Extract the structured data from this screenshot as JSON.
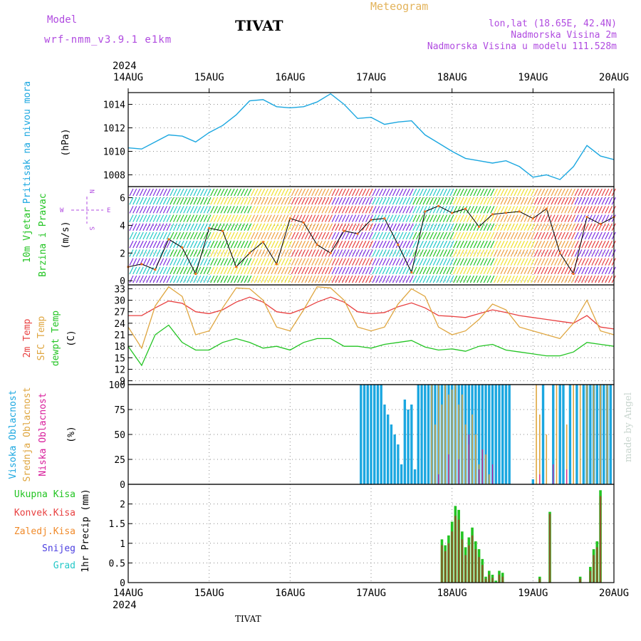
{
  "header": {
    "model_label": "Model",
    "model_name": "wrf-nmm_v3.9.1 e1km",
    "station": "TIVAT",
    "meteogram": "Meteogram",
    "lonlat": "lon,lat (18.65E, 42.4N)",
    "elevation": "Nadmorska Visina 2m",
    "model_elevation": "Nadmorska Visina u modelu 111.528m"
  },
  "footer": {
    "station": "TIVAT",
    "credit": "made by Angel"
  },
  "colors": {
    "pressure": "#1ba7e0",
    "wind_label": "#22c422",
    "temp2m": "#e84040",
    "sfc": "#dfa640",
    "dew": "#22c422",
    "high_cloud": "#1ba7e0",
    "mid_cloud": "#dfa640",
    "low_cloud": "#d81b9a",
    "total_precip": "#22c422",
    "conv_precip": "#e84040",
    "frozen_precip": "#f08a2a",
    "snow": "#4b3ee0",
    "hail": "#22c8c8"
  },
  "time_axis": {
    "year": "2024",
    "labels": [
      "14AUG",
      "15AUG",
      "16AUG",
      "17AUG",
      "18AUG",
      "19AUG",
      "20AUG"
    ]
  },
  "panels": {
    "pressure": {
      "label": "Pritisak na nivou mora",
      "unit": "(hPa)",
      "ticks": [
        "1008",
        "1010",
        "1012",
        "1014"
      ]
    },
    "wind": {
      "label1": "10m Vjetar",
      "label2": "Brzina i Pravac",
      "unit": "(m/s)",
      "ticks": [
        "0",
        "2",
        "4",
        "6"
      ],
      "compass": {
        "w": "W",
        "e": "E",
        "n": "N",
        "s": "S"
      }
    },
    "temperature": {
      "label_2m": "2m Temp",
      "label_sfc": "SFC Temp",
      "label_dew": "dewpt Temp",
      "unit": "(C)",
      "ticks": [
        "9",
        "12",
        "15",
        "18",
        "21",
        "24",
        "27",
        "30",
        "33"
      ]
    },
    "clouds": {
      "label_high": "Visoka Oblacnost",
      "label_mid": "Srednja Oblacnost",
      "label_low": "Niska Oblacnost",
      "unit": "(%)",
      "ticks": [
        "0",
        "25",
        "50",
        "75",
        "100"
      ]
    },
    "precip": {
      "label_total": "Ukupna Kisa",
      "label_conv": "Konvek.Kisa",
      "label_frozen": "Zaledj.Kisa",
      "label_snow": "Snijeg",
      "label_hail": "Grad",
      "axis_label": "1hr Precip (mm)",
      "ticks": [
        "0",
        "0.5",
        "1",
        "1.5",
        "2"
      ]
    }
  },
  "chart_data": [
    {
      "type": "line",
      "panel": "pressure",
      "ylim": [
        1007,
        1015
      ],
      "x_hours": [
        0,
        4,
        8,
        12,
        16,
        20,
        24,
        28,
        32,
        36,
        40,
        44,
        48,
        52,
        56,
        60,
        64,
        68,
        72,
        76,
        80,
        84,
        88,
        92,
        96,
        100,
        104,
        108,
        112,
        116,
        120,
        124,
        128,
        132,
        136,
        140,
        144
      ],
      "series": [
        {
          "name": "Pritisak na nivou mora",
          "values": [
            1010.3,
            1010.2,
            1010.8,
            1011.4,
            1011.3,
            1010.8,
            1011.6,
            1012.2,
            1013.1,
            1014.3,
            1014.4,
            1013.8,
            1013.7,
            1013.8,
            1014.2,
            1014.9,
            1014.0,
            1012.8,
            1012.9,
            1012.3,
            1012.5,
            1012.6,
            1011.4,
            1010.7,
            1010.0,
            1009.4,
            1009.2,
            1009.0,
            1009.2,
            1008.7,
            1007.8,
            1008.0,
            1007.6,
            1008.7,
            1010.5,
            1009.6,
            1009.3
          ]
        }
      ]
    },
    {
      "type": "line",
      "panel": "wind",
      "ylim": [
        -0.3,
        6.8
      ],
      "x_hours": [
        0,
        4,
        8,
        12,
        16,
        20,
        24,
        28,
        32,
        36,
        40,
        44,
        48,
        52,
        56,
        60,
        64,
        68,
        72,
        76,
        80,
        84,
        88,
        92,
        96,
        100,
        104,
        108,
        112,
        116,
        120,
        124,
        128,
        132,
        136,
        140,
        144
      ],
      "series": [
        {
          "name": "10m Vjetar",
          "values": [
            1.0,
            1.2,
            0.8,
            3.0,
            2.4,
            0.5,
            3.8,
            3.6,
            1.0,
            2.0,
            2.8,
            1.2,
            4.5,
            4.2,
            2.6,
            2.0,
            3.6,
            3.4,
            4.4,
            4.5,
            2.6,
            0.6,
            5.0,
            5.4,
            4.9,
            5.2,
            3.9,
            4.8,
            4.9,
            5.0,
            4.5,
            5.2,
            2.0,
            0.5,
            4.6,
            4.1,
            4.6
          ]
        }
      ]
    },
    {
      "type": "line",
      "panel": "temperature",
      "ylim": [
        8,
        34
      ],
      "x_hours": [
        0,
        4,
        8,
        12,
        16,
        20,
        24,
        28,
        32,
        36,
        40,
        44,
        48,
        52,
        56,
        60,
        64,
        68,
        72,
        76,
        80,
        84,
        88,
        92,
        96,
        100,
        104,
        108,
        112,
        116,
        120,
        124,
        128,
        132,
        136,
        140,
        144
      ],
      "series": [
        {
          "name": "2m Temp",
          "values": [
            26,
            26,
            28,
            29.8,
            29.2,
            27,
            26.5,
            27.5,
            29.5,
            30.8,
            29.5,
            27,
            26.5,
            27.8,
            29.5,
            30.8,
            29.5,
            27,
            26.5,
            26.8,
            28.3,
            29.3,
            28,
            26,
            25.8,
            25.5,
            26.5,
            27.5,
            26.8,
            26,
            25.5,
            25,
            24.5,
            24,
            26,
            23,
            22.5
          ]
        },
        {
          "name": "SFC Temp",
          "values": [
            23,
            17.5,
            28.5,
            33.5,
            31,
            21,
            22,
            28,
            33.2,
            33,
            30,
            23,
            22,
            27.5,
            33.5,
            33.2,
            30,
            23,
            22,
            23,
            29,
            33,
            31,
            23,
            21,
            22,
            25,
            29,
            27.5,
            23,
            22,
            21,
            20,
            24,
            30,
            22,
            21
          ]
        },
        {
          "name": "dewpt Temp",
          "values": [
            18,
            13,
            21,
            23.5,
            19,
            17,
            17,
            19,
            20,
            19,
            17.5,
            18,
            17,
            19,
            20,
            20,
            18,
            18,
            17.5,
            18.5,
            19,
            19.5,
            17.8,
            17,
            17.3,
            16.7,
            18,
            18.5,
            17,
            16.5,
            16,
            15.5,
            15.5,
            16.5,
            19,
            18.5,
            18
          ]
        }
      ]
    },
    {
      "type": "bar",
      "panel": "clouds",
      "ylim": [
        0,
        100
      ],
      "series": [
        {
          "name": "Visoka Oblacnost",
          "points": [
            [
              69,
              100
            ],
            [
              70,
              100
            ],
            [
              71,
              100
            ],
            [
              72,
              100
            ],
            [
              73,
              100
            ],
            [
              74,
              100
            ],
            [
              75,
              100
            ],
            [
              76,
              80
            ],
            [
              77,
              70
            ],
            [
              78,
              60
            ],
            [
              79,
              50
            ],
            [
              80,
              40
            ],
            [
              81,
              20
            ],
            [
              82,
              85
            ],
            [
              83,
              75
            ],
            [
              84,
              80
            ],
            [
              85,
              15
            ],
            [
              86,
              100
            ],
            [
              87,
              100
            ],
            [
              88,
              100
            ],
            [
              89,
              100
            ],
            [
              90,
              100
            ],
            [
              91,
              100
            ],
            [
              92,
              100
            ],
            [
              93,
              100
            ],
            [
              94,
              100
            ],
            [
              95,
              100
            ],
            [
              96,
              100
            ],
            [
              97,
              100
            ],
            [
              98,
              100
            ],
            [
              99,
              100
            ],
            [
              100,
              100
            ],
            [
              101,
              100
            ],
            [
              102,
              100
            ],
            [
              103,
              100
            ],
            [
              104,
              100
            ],
            [
              105,
              100
            ],
            [
              106,
              100
            ],
            [
              107,
              100
            ],
            [
              108,
              100
            ],
            [
              109,
              100
            ],
            [
              110,
              100
            ],
            [
              111,
              100
            ],
            [
              112,
              100
            ],
            [
              113,
              100
            ],
            [
              120,
              5
            ],
            [
              123,
              100
            ],
            [
              126,
              100
            ],
            [
              128,
              100
            ],
            [
              129,
              100
            ],
            [
              131,
              100
            ],
            [
              133,
              100
            ],
            [
              135,
              100
            ],
            [
              136,
              100
            ],
            [
              137,
              100
            ],
            [
              138,
              100
            ],
            [
              139,
              100
            ],
            [
              140,
              100
            ],
            [
              141,
              100
            ],
            [
              142,
              100
            ],
            [
              143,
              100
            ]
          ]
        },
        {
          "name": "Srednja Oblacnost",
          "points": [
            [
              90,
              100
            ],
            [
              91,
              60
            ],
            [
              92,
              100
            ],
            [
              93,
              80
            ],
            [
              94,
              100
            ],
            [
              95,
              90
            ],
            [
              96,
              95
            ],
            [
              97,
              100
            ],
            [
              98,
              80
            ],
            [
              99,
              90
            ],
            [
              100,
              60
            ],
            [
              101,
              40
            ],
            [
              102,
              70
            ],
            [
              103,
              50
            ],
            [
              104,
              20
            ],
            [
              105,
              35
            ],
            [
              106,
              30
            ],
            [
              107,
              10
            ],
            [
              121,
              100
            ],
            [
              122,
              70
            ],
            [
              124,
              50
            ],
            [
              127,
              100
            ],
            [
              130,
              60
            ],
            [
              132,
              100
            ],
            [
              134,
              100
            ],
            [
              136,
              100
            ],
            [
              138,
              100
            ],
            [
              140,
              100
            ],
            [
              142,
              100
            ]
          ]
        },
        {
          "name": "Niska Oblacnost",
          "points": [
            [
              92,
              10
            ],
            [
              95,
              30
            ],
            [
              98,
              25
            ],
            [
              101,
              50
            ],
            [
              104,
              15
            ],
            [
              105,
              35
            ],
            [
              108,
              20
            ],
            [
              122,
              10
            ],
            [
              126,
              20
            ],
            [
              130,
              15
            ]
          ]
        }
      ]
    },
    {
      "type": "bar",
      "panel": "precip",
      "ylim": [
        0,
        2.5
      ],
      "series": [
        {
          "name": "Ukupna Kisa",
          "points": [
            [
              93,
              1.1
            ],
            [
              94,
              0.95
            ],
            [
              95,
              1.2
            ],
            [
              96,
              1.55
            ],
            [
              97,
              1.95
            ],
            [
              98,
              1.85
            ],
            [
              99,
              1.3
            ],
            [
              100,
              0.9
            ],
            [
              101,
              1.15
            ],
            [
              102,
              1.4
            ],
            [
              103,
              1.05
            ],
            [
              104,
              0.85
            ],
            [
              105,
              0.6
            ],
            [
              106,
              0.15
            ],
            [
              107,
              0.3
            ],
            [
              108,
              0.2
            ],
            [
              109,
              0.05
            ],
            [
              110,
              0.3
            ],
            [
              111,
              0.25
            ],
            [
              122,
              0.15
            ],
            [
              125,
              1.8
            ],
            [
              134,
              0.15
            ],
            [
              137,
              0.4
            ],
            [
              138,
              0.85
            ],
            [
              139,
              1.05
            ],
            [
              140,
              2.35
            ]
          ]
        },
        {
          "name": "Konvek.Kisa",
          "points": [
            [
              93,
              0.95
            ],
            [
              94,
              0.8
            ],
            [
              95,
              1.0
            ],
            [
              96,
              1.3
            ],
            [
              97,
              1.7
            ],
            [
              98,
              1.6
            ],
            [
              99,
              1.1
            ],
            [
              100,
              0.7
            ],
            [
              101,
              0.95
            ],
            [
              102,
              1.2
            ],
            [
              103,
              0.85
            ],
            [
              104,
              0.65
            ],
            [
              105,
              0.45
            ],
            [
              106,
              0.1
            ],
            [
              107,
              0.2
            ],
            [
              108,
              0.12
            ],
            [
              110,
              0.2
            ],
            [
              111,
              0.15
            ],
            [
              122,
              0.1
            ],
            [
              125,
              1.75
            ],
            [
              134,
              0.1
            ],
            [
              137,
              0.3
            ],
            [
              138,
              0.7
            ],
            [
              139,
              0.9
            ],
            [
              140,
              2.2
            ]
          ]
        },
        {
          "name": "Zaledj.Kisa",
          "points": []
        },
        {
          "name": "Snijeg",
          "points": []
        },
        {
          "name": "Grad",
          "points": []
        }
      ]
    }
  ]
}
